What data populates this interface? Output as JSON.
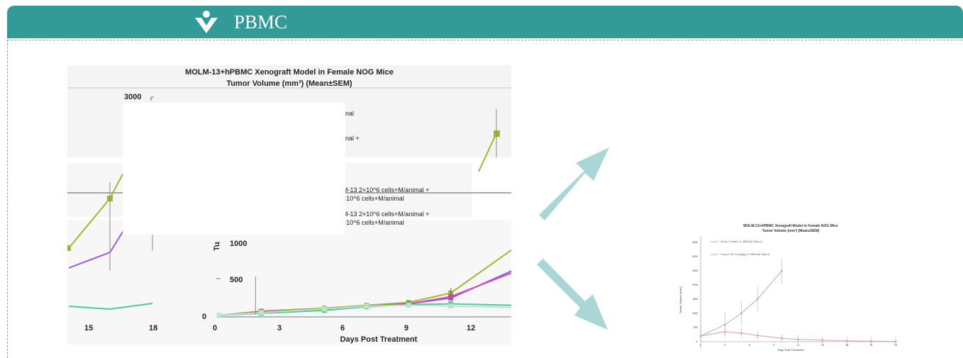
{
  "header": {
    "title": "PBMC",
    "icon": "v-check-logo-icon"
  },
  "colors": {
    "header_bg": "#329b98",
    "arrow": "#a9d6d6",
    "series_olive": "#a3b62b",
    "series_purple": "#9a5ae6",
    "series_green": "#4fc9a0",
    "series_light": "#b8e6c8",
    "series_magenta": "#c84fb0"
  },
  "big_chart": {
    "title_line1": "MOLM-13+hPBMC Xenograft Model in Female NOG Mice",
    "title_line2": "Tumor Volume (mm³) (Mean±SEM)",
    "ylabel": "Tu",
    "xlabel": "Days Post Treatment",
    "left_tick_labels": [
      "15",
      "18"
    ],
    "x_tick_labels": [
      "0",
      "3",
      "6",
      "9",
      "12"
    ],
    "y_tick_labels": [
      "3000",
      "1000",
      "500",
      "0"
    ],
    "legend_fragments": [
      "nal",
      "nal +",
      "M-13  2×10^6 cells+M/animal +",
      "×10^6 cells+M/animal",
      "M-13  2×10^6 cells+M/animal +",
      "×10^6 cells+M/animal"
    ]
  },
  "small_chart": {
    "title_line1": "MOLM-13+hPBMC Xenograft Model in Female NOG Mice",
    "title_line2": "Tumor Volume (mm³) (Mean±SEM)",
    "xlabel": "Days Post Treatment",
    "ylabel": "Tumor Volume (mm³)",
    "legend": [
      "Group 1 Vehicle, IV, BIW×2(6 Tabs×1)",
      "Group 4 TH, 2.5 mg/kg, IV, BIW×2(6 Tabs×2)"
    ],
    "x_ticks": [
      "0",
      "3",
      "6",
      "9",
      "12",
      "15",
      "18",
      "21",
      "24"
    ],
    "y_ticks": [
      "3500",
      "3000",
      "2500",
      "2000",
      "1500",
      "1000",
      "500",
      "0"
    ]
  },
  "chart_data": [
    {
      "type": "line",
      "title": "MOLM-13+hPBMC Xenograft Model in Female NOG Mice",
      "subtitle": "Tumor Volume (mm³) (Mean±SEM)",
      "xlabel": "Days Post Treatment",
      "ylabel": "Tu",
      "xlim": [
        0,
        14
      ],
      "ylim": [
        0,
        3000
      ],
      "series": [
        {
          "x": [
            0,
            2,
            5,
            7,
            9,
            11,
            14
          ],
          "values": [
            20,
            80,
            120,
            160,
            200,
            330,
            950
          ]
        },
        {
          "x": [
            0,
            2,
            5,
            7,
            9,
            11,
            14
          ],
          "values": [
            20,
            60,
            100,
            150,
            180,
            260,
            650
          ]
        },
        {
          "x": [
            0,
            2,
            5,
            7,
            9,
            11,
            14
          ],
          "values": [
            20,
            70,
            110,
            150,
            180,
            280,
            620
          ]
        },
        {
          "x": [
            0,
            2,
            5,
            7,
            9,
            11,
            14
          ],
          "values": [
            20,
            50,
            90,
            140,
            170,
            180,
            160
          ]
        },
        {
          "x": [
            0,
            2,
            5,
            7,
            9,
            11,
            14
          ],
          "values": [
            20,
            60,
            110,
            150,
            160,
            150,
            130
          ]
        }
      ]
    },
    {
      "type": "line",
      "title": "MOLM-13+hPBMC Xenograft Model in Female NOG Mice",
      "subtitle": "Tumor Volume (mm³) (Mean±SEM)",
      "xlabel": "Days Post Treatment",
      "ylabel": "Tumor Volume (mm³)",
      "xlim": [
        0,
        24
      ],
      "ylim": [
        0,
        3500
      ],
      "series": [
        {
          "name": "Group 1 Vehicle, IV, BIW×2(6 Tabs×1)",
          "x": [
            0,
            3,
            5,
            7,
            10
          ],
          "values": [
            200,
            600,
            1000,
            1500,
            2500
          ]
        },
        {
          "name": "Group 4 TH, 2.5 mg/kg, IV, BIW×2(6 Tabs×2)",
          "x": [
            0,
            3,
            5,
            7,
            10,
            12,
            15,
            18,
            21,
            24
          ],
          "values": [
            200,
            350,
            300,
            220,
            120,
            80,
            50,
            30,
            20,
            10
          ]
        }
      ]
    }
  ]
}
